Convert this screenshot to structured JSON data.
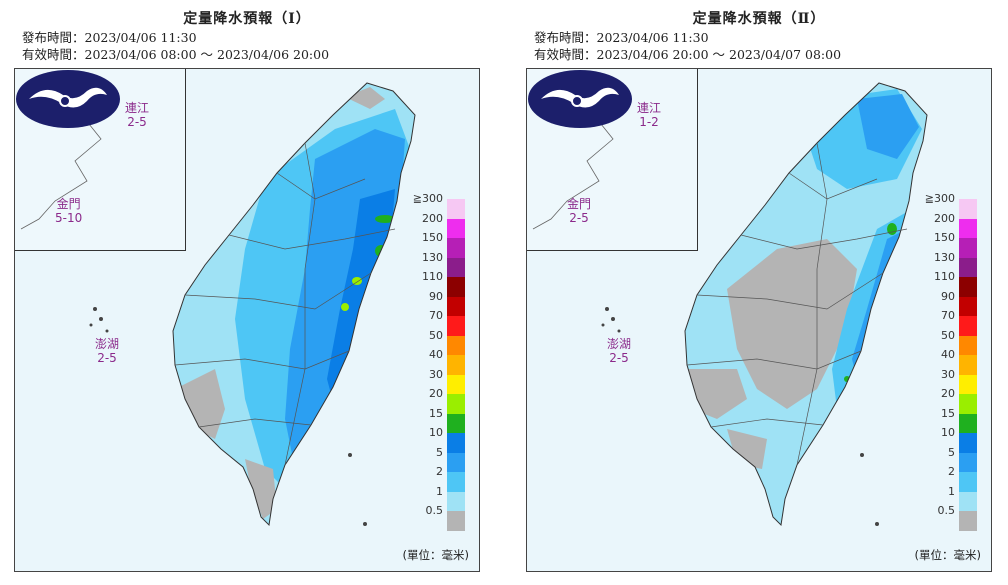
{
  "unit_label": "(單位：毫米)",
  "legend": {
    "labels": [
      "≧300",
      "200",
      "150",
      "130",
      "110",
      "90",
      "70",
      "50",
      "40",
      "30",
      "20",
      "15",
      "10",
      "5",
      "2",
      "1",
      "0.5"
    ],
    "colors": [
      "#f6c8f3",
      "#ee2dee",
      "#b61fb6",
      "#8b1d8b",
      "#8c0000",
      "#c20000",
      "#ff1a1a",
      "#ff8800",
      "#ffb400",
      "#ffee00",
      "#9aee00",
      "#1fb01f",
      "#0a7ee6",
      "#2b9ff2",
      "#4ec6f5",
      "#9fe2f5",
      "#b4b4b4"
    ]
  },
  "panels": [
    {
      "title": "定量降水預報（Ⅰ）",
      "issued": "發布時間：2023/04/06 11:30",
      "valid": "有效時間：2023/04/06 08:00 ～ 2023/04/06 20:00",
      "islands": [
        {
          "name": "連江",
          "value": "2-5"
        },
        {
          "name": "金門",
          "value": "5-10"
        },
        {
          "name": "澎湖",
          "value": "2-5"
        }
      ]
    },
    {
      "title": "定量降水預報（Ⅱ）",
      "issued": "發布時間：2023/04/06 11:30",
      "valid": "有效時間：2023/04/06 20:00 ～ 2023/04/07 08:00",
      "islands": [
        {
          "name": "連江",
          "value": "1-2"
        },
        {
          "name": "金門",
          "value": "2-5"
        },
        {
          "name": "澎湖",
          "value": "2-5"
        }
      ]
    }
  ]
}
